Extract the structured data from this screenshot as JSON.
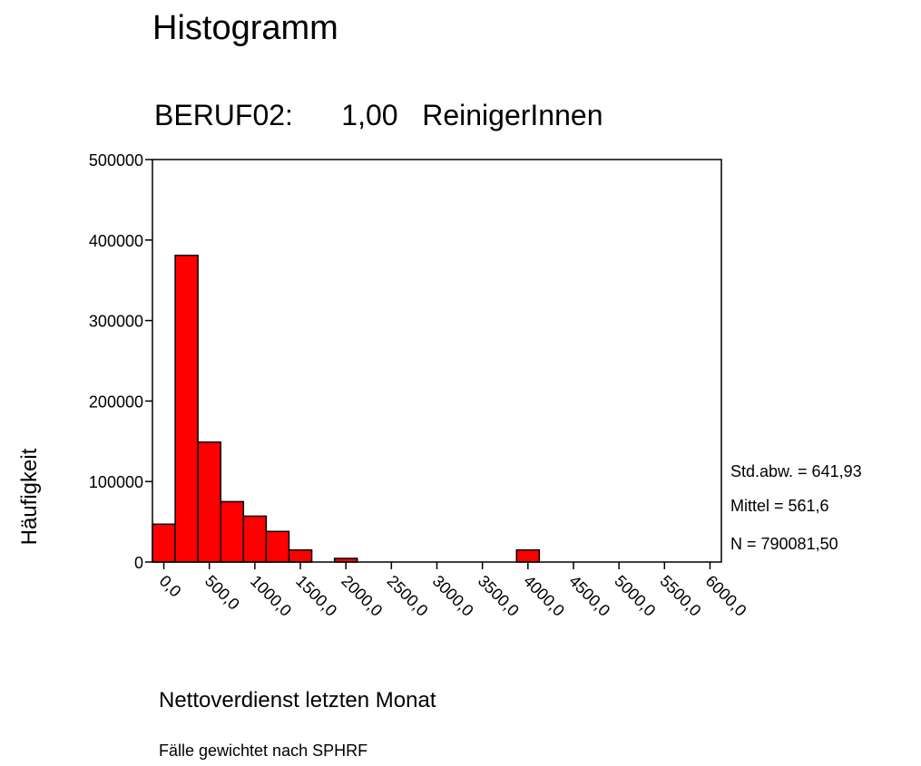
{
  "chart_data": {
    "type": "histogram",
    "title": "Histogramm",
    "subtitle": "BERUF02:      1,00   ReinigerInnen",
    "x_label": "Nettoverdienst letzten Monat",
    "y_label": "Häufigkeit",
    "footnote": "Fälle gewichtet nach SPHRF",
    "annotations": [
      "Std.abw. = 641,93",
      "Mittel = 561,6",
      "N = 790081,50"
    ],
    "color": "#ff0000",
    "bins": [
      -125,
      125,
      375,
      625,
      875,
      1125,
      1375,
      1625,
      1875,
      2125,
      2375,
      2625,
      2875,
      3125,
      3375,
      3625,
      3875,
      4125,
      4375,
      4625,
      4875,
      5125,
      5375,
      5625,
      5875,
      6125
    ],
    "counts": [
      47000,
      381000,
      149000,
      75000,
      57000,
      38000,
      15000,
      0,
      4500,
      0,
      0,
      0,
      0,
      0,
      0,
      0,
      15000,
      0,
      0,
      0,
      0,
      0,
      0,
      0,
      0
    ],
    "xlim": [
      -125,
      6125
    ],
    "ylim": [
      0,
      500000
    ],
    "xticks": [
      {
        "value": 0,
        "label": "0,0"
      },
      {
        "value": 500,
        "label": "500,0"
      },
      {
        "value": 1000,
        "label": "1000,0"
      },
      {
        "value": 1500,
        "label": "1500,0"
      },
      {
        "value": 2000,
        "label": "2000,0"
      },
      {
        "value": 2500,
        "label": "2500,0"
      },
      {
        "value": 3000,
        "label": "3000,0"
      },
      {
        "value": 3500,
        "label": "3500,0"
      },
      {
        "value": 4000,
        "label": "4000,0"
      },
      {
        "value": 4500,
        "label": "4500,0"
      },
      {
        "value": 5000,
        "label": "5000,0"
      },
      {
        "value": 5500,
        "label": "5500,0"
      },
      {
        "value": 6000,
        "label": "6000,0"
      }
    ],
    "yticks": [
      0,
      100000,
      200000,
      300000,
      400000,
      500000
    ]
  }
}
